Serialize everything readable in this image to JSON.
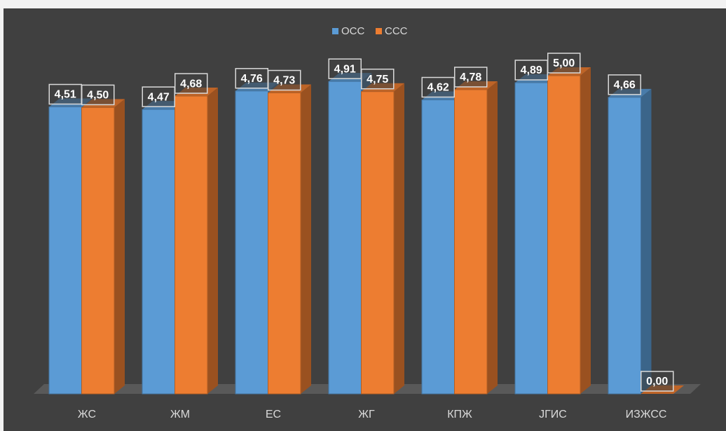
{
  "chart_data": {
    "type": "bar3d",
    "categories": [
      "ЖС",
      "ЖМ",
      "ЕС",
      "ЖГ",
      "КПЖ",
      "ЈГИС",
      "ИЗЖСС"
    ],
    "series": [
      {
        "name": "ОСС",
        "color": "#5b9bd5",
        "values": [
          4.51,
          4.47,
          4.76,
          4.91,
          4.62,
          4.89,
          4.66
        ],
        "value_labels": [
          "4,51",
          "4,47",
          "4,76",
          "4,91",
          "4,62",
          "4,89",
          "4,66"
        ]
      },
      {
        "name": "ССС",
        "color": "#ed7d31",
        "values": [
          4.5,
          4.68,
          4.73,
          4.75,
          4.78,
          5.0,
          0
        ],
        "value_labels": [
          "4,50",
          "4,68",
          "4,73",
          "4,75",
          "4,78",
          "5,00",
          "0,00"
        ]
      }
    ],
    "ylim": [
      0,
      5
    ],
    "legend": "top"
  }
}
